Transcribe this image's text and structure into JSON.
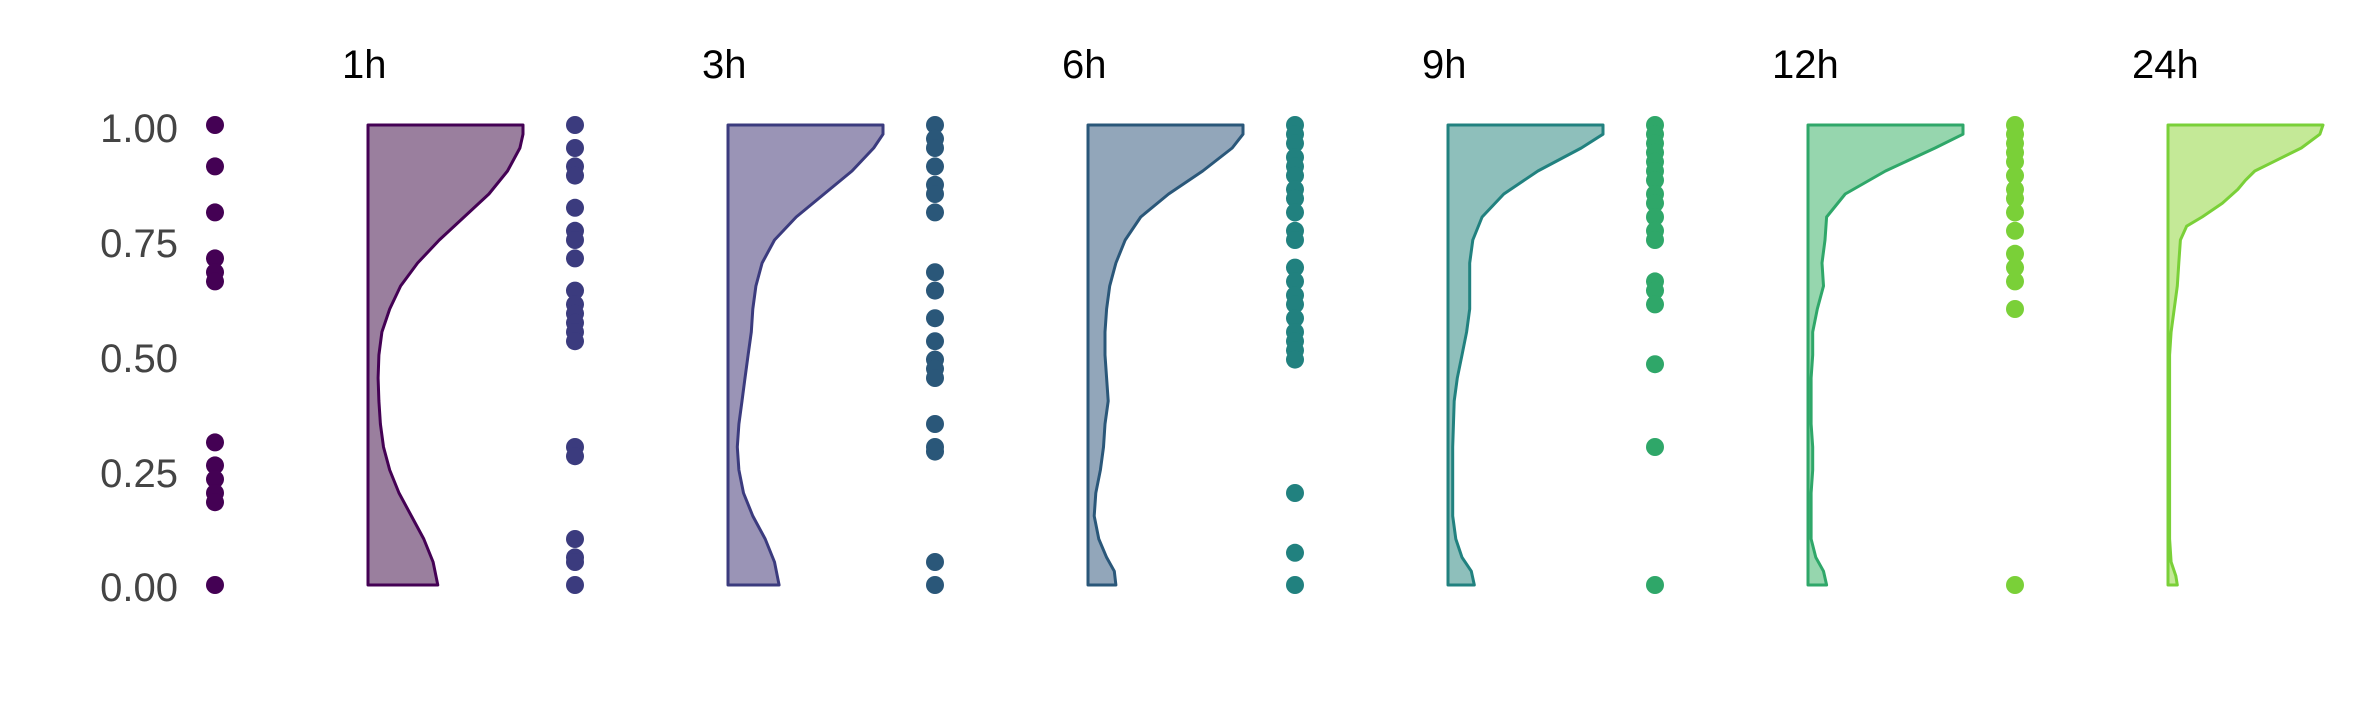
{
  "chart_data": {
    "type": "raincloud",
    "title": "",
    "xlabel": "",
    "ylabel": "",
    "ylim": [
      0,
      1
    ],
    "y_ticks": [
      "0.00",
      "0.25",
      "0.50",
      "0.75",
      "1.00"
    ],
    "y_tick_values": [
      0,
      0.25,
      0.5,
      0.75,
      1.0
    ],
    "grid": false,
    "legend": "none",
    "panels": [
      {
        "label": "1h",
        "color": "#440154",
        "fill": "#9A7F9E",
        "points": [
          1.0,
          0.91,
          0.81,
          0.71,
          0.68,
          0.66,
          0.31,
          0.26,
          0.23,
          0.2,
          0.18,
          0.0
        ],
        "density": [
          [
            0,
            0.45
          ],
          [
            0.05,
            0.42
          ],
          [
            0.1,
            0.36
          ],
          [
            0.15,
            0.28
          ],
          [
            0.2,
            0.2
          ],
          [
            0.25,
            0.14
          ],
          [
            0.3,
            0.1
          ],
          [
            0.35,
            0.08
          ],
          [
            0.4,
            0.07
          ],
          [
            0.45,
            0.065
          ],
          [
            0.5,
            0.07
          ],
          [
            0.55,
            0.09
          ],
          [
            0.6,
            0.14
          ],
          [
            0.65,
            0.21
          ],
          [
            0.7,
            0.32
          ],
          [
            0.75,
            0.46
          ],
          [
            0.8,
            0.62
          ],
          [
            0.85,
            0.78
          ],
          [
            0.9,
            0.9
          ],
          [
            0.95,
            0.98
          ],
          [
            0.98,
            1.0
          ],
          [
            1.0,
            1.0
          ]
        ]
      },
      {
        "label": "3h",
        "color": "#3B3B7E",
        "fill": "#9A94B6",
        "points": [
          1.0,
          0.95,
          0.91,
          0.89,
          0.82,
          0.77,
          0.75,
          0.71,
          0.64,
          0.61,
          0.59,
          0.57,
          0.55,
          0.53,
          0.3,
          0.28,
          0.1,
          0.06,
          0.05,
          0.0
        ],
        "density": [
          [
            0,
            0.33
          ],
          [
            0.05,
            0.3
          ],
          [
            0.1,
            0.24
          ],
          [
            0.15,
            0.16
          ],
          [
            0.2,
            0.1
          ],
          [
            0.25,
            0.07
          ],
          [
            0.3,
            0.06
          ],
          [
            0.35,
            0.07
          ],
          [
            0.4,
            0.09
          ],
          [
            0.45,
            0.11
          ],
          [
            0.5,
            0.13
          ],
          [
            0.55,
            0.15
          ],
          [
            0.6,
            0.16
          ],
          [
            0.65,
            0.18
          ],
          [
            0.7,
            0.22
          ],
          [
            0.75,
            0.3
          ],
          [
            0.8,
            0.44
          ],
          [
            0.85,
            0.62
          ],
          [
            0.9,
            0.8
          ],
          [
            0.95,
            0.94
          ],
          [
            0.98,
            1.0
          ],
          [
            1.0,
            1.0
          ]
        ]
      },
      {
        "label": "6h",
        "color": "#2A5779",
        "fill": "#92A6BA",
        "points": [
          1.0,
          0.97,
          0.95,
          0.91,
          0.87,
          0.85,
          0.81,
          0.68,
          0.64,
          0.58,
          0.53,
          0.49,
          0.47,
          0.45,
          0.35,
          0.3,
          0.29,
          0.05,
          0.0
        ],
        "density": [
          [
            0,
            0.18
          ],
          [
            0.03,
            0.17
          ],
          [
            0.06,
            0.12
          ],
          [
            0.1,
            0.07
          ],
          [
            0.15,
            0.04
          ],
          [
            0.2,
            0.05
          ],
          [
            0.25,
            0.08
          ],
          [
            0.3,
            0.1
          ],
          [
            0.35,
            0.11
          ],
          [
            0.4,
            0.13
          ],
          [
            0.45,
            0.12
          ],
          [
            0.5,
            0.11
          ],
          [
            0.55,
            0.11
          ],
          [
            0.6,
            0.12
          ],
          [
            0.65,
            0.14
          ],
          [
            0.7,
            0.18
          ],
          [
            0.75,
            0.24
          ],
          [
            0.8,
            0.34
          ],
          [
            0.85,
            0.52
          ],
          [
            0.9,
            0.74
          ],
          [
            0.95,
            0.93
          ],
          [
            0.98,
            1.0
          ],
          [
            1.0,
            1.0
          ]
        ]
      },
      {
        "label": "9h",
        "color": "#21817F",
        "fill": "#8EBFBB",
        "points": [
          1.0,
          0.98,
          0.96,
          0.93,
          0.91,
          0.89,
          0.86,
          0.84,
          0.81,
          0.77,
          0.75,
          0.69,
          0.66,
          0.63,
          0.61,
          0.58,
          0.55,
          0.53,
          0.51,
          0.49,
          0.2,
          0.07,
          0.0
        ],
        "density": [
          [
            0,
            0.17
          ],
          [
            0.03,
            0.15
          ],
          [
            0.06,
            0.09
          ],
          [
            0.1,
            0.05
          ],
          [
            0.15,
            0.03
          ],
          [
            0.2,
            0.03
          ],
          [
            0.3,
            0.03
          ],
          [
            0.4,
            0.04
          ],
          [
            0.45,
            0.06
          ],
          [
            0.5,
            0.09
          ],
          [
            0.55,
            0.12
          ],
          [
            0.6,
            0.14
          ],
          [
            0.65,
            0.14
          ],
          [
            0.7,
            0.14
          ],
          [
            0.75,
            0.16
          ],
          [
            0.8,
            0.22
          ],
          [
            0.85,
            0.36
          ],
          [
            0.9,
            0.58
          ],
          [
            0.95,
            0.86
          ],
          [
            0.98,
            1.0
          ],
          [
            1.0,
            1.0
          ]
        ]
      },
      {
        "label": "12h",
        "color": "#2FA769",
        "fill": "#96D6AE",
        "points": [
          1.0,
          0.98,
          0.96,
          0.94,
          0.92,
          0.9,
          0.88,
          0.85,
          0.83,
          0.8,
          0.77,
          0.75,
          0.66,
          0.64,
          0.61,
          0.48,
          0.3,
          0.0
        ],
        "density": [
          [
            0,
            0.12
          ],
          [
            0.03,
            0.1
          ],
          [
            0.06,
            0.05
          ],
          [
            0.1,
            0.02
          ],
          [
            0.2,
            0.02
          ],
          [
            0.25,
            0.03
          ],
          [
            0.3,
            0.03
          ],
          [
            0.35,
            0.02
          ],
          [
            0.45,
            0.02
          ],
          [
            0.5,
            0.03
          ],
          [
            0.55,
            0.03
          ],
          [
            0.6,
            0.06
          ],
          [
            0.65,
            0.1
          ],
          [
            0.7,
            0.09
          ],
          [
            0.75,
            0.11
          ],
          [
            0.8,
            0.12
          ],
          [
            0.85,
            0.24
          ],
          [
            0.9,
            0.5
          ],
          [
            0.95,
            0.82
          ],
          [
            0.98,
            1.0
          ],
          [
            1.0,
            1.0
          ]
        ]
      },
      {
        "label": "24h",
        "color": "#7AD038",
        "fill": "#C4E997",
        "points": [
          1.0,
          0.98,
          0.96,
          0.94,
          0.92,
          0.89,
          0.86,
          0.84,
          0.81,
          0.77,
          0.72,
          0.69,
          0.66,
          0.6,
          0.0
        ],
        "density": [
          [
            0,
            0.06
          ],
          [
            0.02,
            0.05
          ],
          [
            0.05,
            0.02
          ],
          [
            0.1,
            0.01
          ],
          [
            0.5,
            0.01
          ],
          [
            0.55,
            0.02
          ],
          [
            0.6,
            0.04
          ],
          [
            0.65,
            0.06
          ],
          [
            0.7,
            0.07
          ],
          [
            0.75,
            0.08
          ],
          [
            0.78,
            0.12
          ],
          [
            0.8,
            0.22
          ],
          [
            0.83,
            0.35
          ],
          [
            0.86,
            0.45
          ],
          [
            0.88,
            0.5
          ],
          [
            0.9,
            0.56
          ],
          [
            0.92,
            0.68
          ],
          [
            0.95,
            0.86
          ],
          [
            0.98,
            0.98
          ],
          [
            1.0,
            1.0
          ]
        ]
      }
    ]
  }
}
